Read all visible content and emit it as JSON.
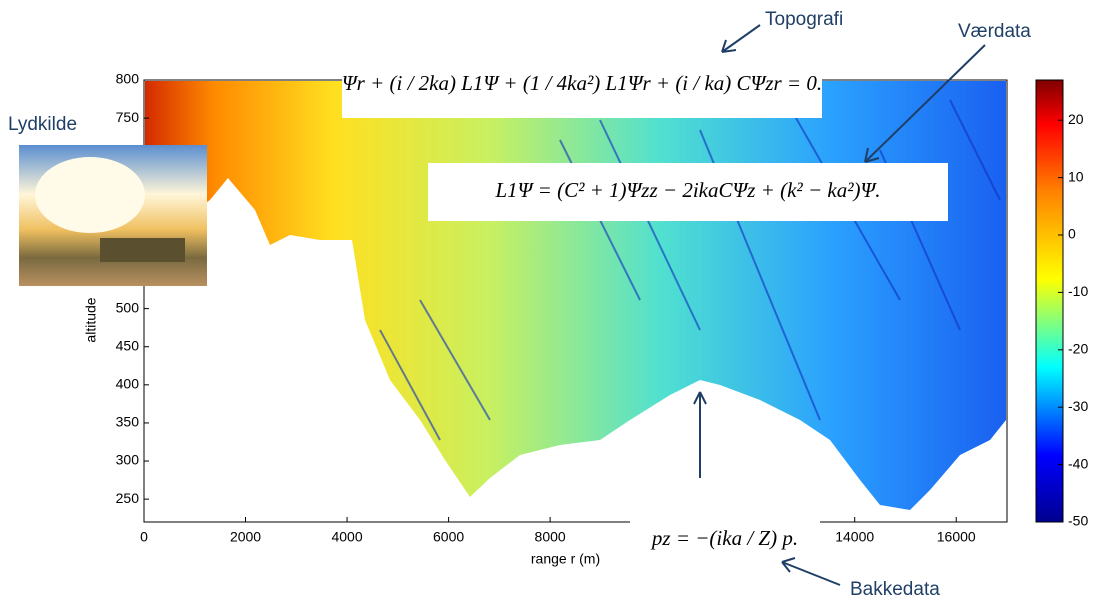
{
  "chart_data": {
    "type": "field",
    "x_label": "range r (m)",
    "y_label": "altitude",
    "xlim": [
      0,
      17000
    ],
    "xticks": [
      0,
      2000,
      4000,
      6000,
      8000,
      14000,
      16000
    ],
    "ylim": [
      220,
      800
    ],
    "yticks": [
      800,
      750,
      500,
      450,
      400,
      350,
      300,
      250
    ],
    "colorbar": {
      "lim": [
        -50,
        27
      ],
      "ticks": [
        20,
        10,
        0,
        -10,
        -20,
        -30,
        -40,
        -50
      ]
    },
    "equations": [
      "Ψr + (i / 2ka) L1Ψ + (1 / 4ka²) L1Ψr + (i / ka) CΨzr = 0.",
      "L1Ψ = (C² + 1)Ψzz − 2ikaCΨz + (k² − ka²)Ψ.",
      "pz = −(ika / Z) p."
    ],
    "annotations": [
      "Topografi",
      "Værdata",
      "Lydkilde",
      "Bakkedata"
    ]
  }
}
